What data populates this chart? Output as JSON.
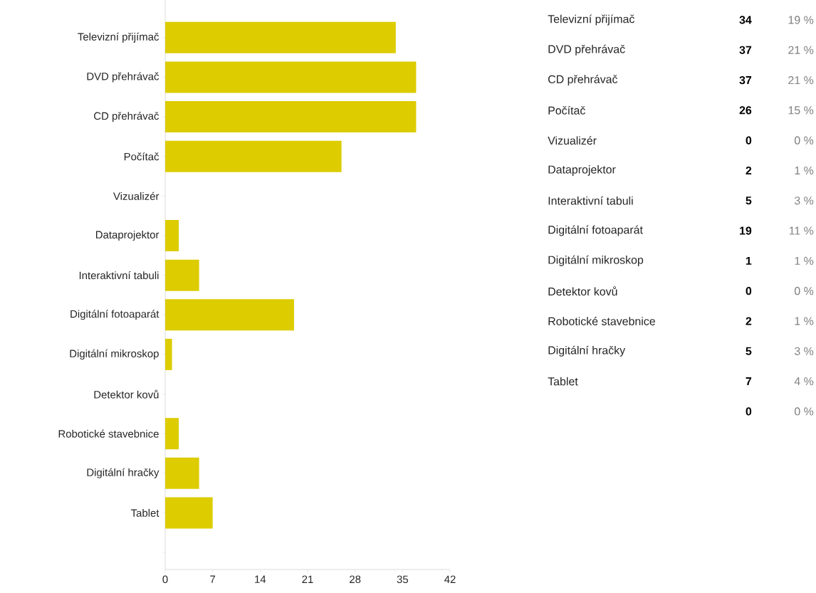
{
  "chart_data": [
    {
      "type": "bar",
      "orientation": "horizontal",
      "categories": [
        "Televizní přijímač",
        "DVD přehrávač",
        "CD přehrávač",
        "Počítač",
        "Vizualizér",
        "Dataprojektor",
        "Interaktivní tabuli",
        "Digitální fotoaparát",
        "Digitální mikroskop",
        "Detektor kovů",
        "Robotické stavebnice",
        "Digitální hračky",
        "Tablet",
        null
      ],
      "values": [
        34,
        37,
        37,
        26,
        0,
        2,
        5,
        19,
        1,
        0,
        2,
        5,
        7,
        0
      ],
      "color": "#dccc00",
      "xlim": [
        0,
        42
      ],
      "xticks": [
        0,
        7,
        14,
        21,
        28,
        35,
        42
      ],
      "grid": false
    },
    {
      "type": "other",
      "categories": [
        "Televizní přijímač",
        "DVD přehrávač",
        "CD přehrávač",
        "Počítač",
        "Vizualizér",
        "Dataprojektor",
        "Interaktivní tabuli",
        "Digitální fotoaparát",
        "Digitální mikroskop",
        "Detektor kovů",
        "Robotické stavebnice",
        "Digitální hračky",
        "Tablet",
        null
      ],
      "annotations": [
        "34",
        "37",
        "37",
        "26",
        "0",
        "2",
        "5",
        "19",
        "1",
        "0",
        "2",
        "5",
        "7",
        "0"
      ],
      "values": [
        19,
        21,
        21,
        15,
        0,
        1,
        3,
        11,
        1,
        0,
        1,
        3,
        4,
        0
      ],
      "value_labels": [
        "19 %",
        "21 %",
        "21 %",
        "15 %",
        "0 %",
        "1 %",
        "3 %",
        "11 %",
        "1 %",
        "0 %",
        "1 %",
        "3 %",
        "4 %",
        "0 %"
      ]
    }
  ]
}
